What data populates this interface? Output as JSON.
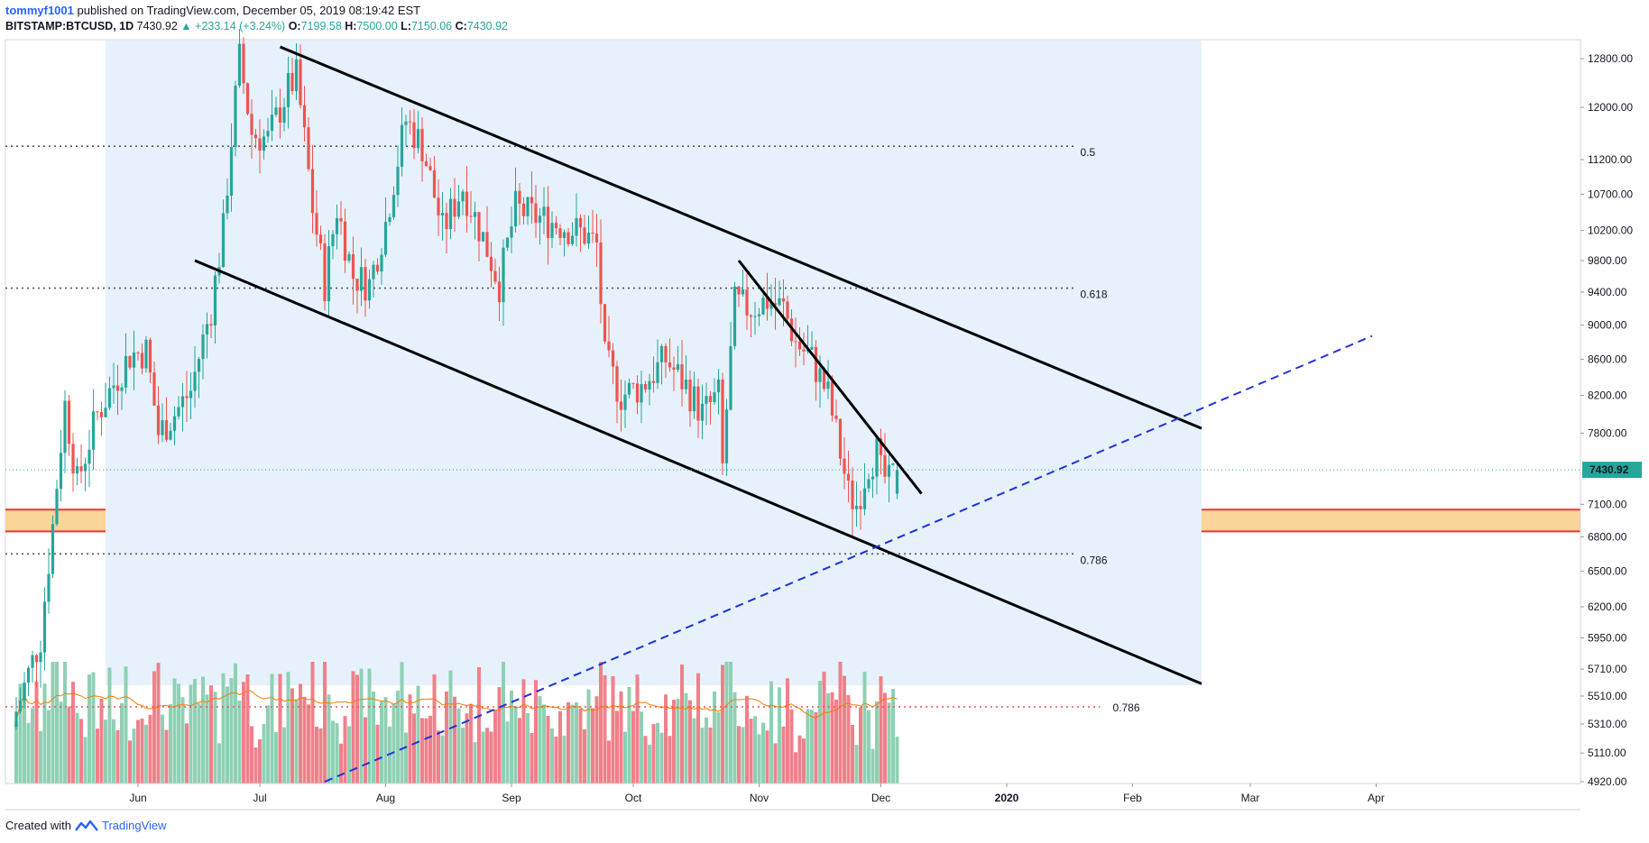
{
  "header": {
    "author": "tommyf1001",
    "published": "published on TradingView.com, December 05, 2019 08:19:42 EST",
    "symbol": "BITSTAMP:BTCUSD, 1D",
    "last": "7430.92",
    "change": "▲ +233.14 (+3.24%)",
    "open_label": "O:",
    "open": "7199.58",
    "high_label": "H:",
    "high": "7500.00",
    "low_label": "L:",
    "low": "7150.06",
    "close_label": "C:",
    "close": "7430.92"
  },
  "footer": {
    "created_with": "Created with",
    "brand": "TradingView",
    "brand_icon": "tradingview-logo-icon"
  },
  "colors": {
    "up": "#26a69a",
    "down": "#ef5350",
    "vol_up": "#8fd0b4",
    "vol_down": "#f0808a",
    "channel_fill": "#e6f1fb",
    "support_zone": "#fcd59a",
    "support_border": "#e53935",
    "trendline": "#000000",
    "dashed_trend": "#1e32d8",
    "ma": "#f57c00",
    "price_tag": "#26a69a",
    "fib_786_volume": "#ef5350"
  },
  "chart_data": {
    "type": "candlestick",
    "symbol": "BITSTAMP:BTCUSD",
    "interval": "1D",
    "y_axis": {
      "scale": "log",
      "ticks": [
        "12800.00",
        "12000.00",
        "11200.00",
        "10700.00",
        "10200.00",
        "9800.00",
        "9400.00",
        "9000.00",
        "8600.00",
        "8200.00",
        "7800.00",
        "7100.00",
        "6800.00",
        "6500.00",
        "6200.00",
        "5950.00",
        "5710.00",
        "5510.00",
        "5310.00",
        "5110.00",
        "4920.00"
      ],
      "last_price_label": "7430.92"
    },
    "x_axis": {
      "labels": [
        {
          "label": "Jun",
          "date": "2019-06-01"
        },
        {
          "label": "Jul",
          "date": "2019-07-01"
        },
        {
          "label": "Aug",
          "date": "2019-08-01"
        },
        {
          "label": "Sep",
          "date": "2019-09-01"
        },
        {
          "label": "Oct",
          "date": "2019-10-01"
        },
        {
          "label": "Nov",
          "date": "2019-11-01"
        },
        {
          "label": "Dec",
          "date": "2019-12-01"
        },
        {
          "label": "2020",
          "date": "2020-01-01"
        },
        {
          "label": "Feb",
          "date": "2020-02-01"
        },
        {
          "label": "Mar",
          "date": "2020-03-01"
        },
        {
          "label": "Apr",
          "date": "2020-04-01"
        }
      ]
    },
    "close_path": [
      {
        "date": "2019-05-02",
        "value": 5400
      },
      {
        "date": "2019-05-08",
        "value": 5950
      },
      {
        "date": "2019-05-11",
        "value": 6900
      },
      {
        "date": "2019-05-14",
        "value": 8100
      },
      {
        "date": "2019-05-17",
        "value": 7300
      },
      {
        "date": "2019-05-22",
        "value": 8000
      },
      {
        "date": "2019-05-30",
        "value": 8650
      },
      {
        "date": "2019-06-03",
        "value": 8700
      },
      {
        "date": "2019-06-06",
        "value": 7800
      },
      {
        "date": "2019-06-10",
        "value": 8000
      },
      {
        "date": "2019-06-14",
        "value": 8250
      },
      {
        "date": "2019-06-19",
        "value": 9200
      },
      {
        "date": "2019-06-22",
        "value": 10200
      },
      {
        "date": "2019-06-26",
        "value": 12800
      },
      {
        "date": "2019-06-29",
        "value": 11600
      },
      {
        "date": "2019-07-03",
        "value": 11500
      },
      {
        "date": "2019-07-08",
        "value": 12300
      },
      {
        "date": "2019-07-10",
        "value": 12500
      },
      {
        "date": "2019-07-14",
        "value": 10500
      },
      {
        "date": "2019-07-17",
        "value": 9500
      },
      {
        "date": "2019-07-20",
        "value": 10500
      },
      {
        "date": "2019-07-24",
        "value": 9600
      },
      {
        "date": "2019-07-28",
        "value": 9500
      },
      {
        "date": "2019-08-01",
        "value": 10300
      },
      {
        "date": "2019-08-06",
        "value": 11800
      },
      {
        "date": "2019-08-10",
        "value": 11400
      },
      {
        "date": "2019-08-15",
        "value": 10200
      },
      {
        "date": "2019-08-20",
        "value": 10800
      },
      {
        "date": "2019-08-25",
        "value": 10100
      },
      {
        "date": "2019-08-29",
        "value": 9500
      },
      {
        "date": "2019-09-02",
        "value": 10500
      },
      {
        "date": "2019-09-06",
        "value": 10400
      },
      {
        "date": "2019-09-12",
        "value": 10300
      },
      {
        "date": "2019-09-19",
        "value": 10150
      },
      {
        "date": "2019-09-22",
        "value": 10000
      },
      {
        "date": "2019-09-24",
        "value": 8600
      },
      {
        "date": "2019-09-28",
        "value": 8200
      },
      {
        "date": "2019-10-03",
        "value": 8300
      },
      {
        "date": "2019-10-09",
        "value": 8600
      },
      {
        "date": "2019-10-14",
        "value": 8300
      },
      {
        "date": "2019-10-18",
        "value": 8000
      },
      {
        "date": "2019-10-22",
        "value": 8200
      },
      {
        "date": "2019-10-23",
        "value": 7450
      },
      {
        "date": "2019-10-25",
        "value": 8650
      },
      {
        "date": "2019-10-26",
        "value": 9250
      },
      {
        "date": "2019-10-30",
        "value": 9200
      },
      {
        "date": "2019-11-03",
        "value": 9300
      },
      {
        "date": "2019-11-07",
        "value": 9200
      },
      {
        "date": "2019-11-10",
        "value": 8800
      },
      {
        "date": "2019-11-14",
        "value": 8600
      },
      {
        "date": "2019-11-18",
        "value": 8200
      },
      {
        "date": "2019-11-21",
        "value": 7600
      },
      {
        "date": "2019-11-23",
        "value": 7200
      },
      {
        "date": "2019-11-25",
        "value": 7100
      },
      {
        "date": "2019-11-28",
        "value": 7500
      },
      {
        "date": "2019-11-30",
        "value": 7600
      },
      {
        "date": "2019-12-01",
        "value": 7400
      },
      {
        "date": "2019-12-03",
        "value": 7300
      },
      {
        "date": "2019-12-05",
        "value": 7430.92
      }
    ],
    "fibonacci_levels": [
      {
        "label": "0.5",
        "value": 11400
      },
      {
        "label": "0.618",
        "value": 9450
      },
      {
        "label": "0.786",
        "value": 6650
      }
    ],
    "volume_fib_label": "0.786",
    "support_zone": {
      "from": 6850,
      "to": 7050
    },
    "descending_channel": {
      "upper": [
        {
          "date": "2019-07-06",
          "value": 13000
        },
        {
          "date": "2020-02-18",
          "value": 7850
        }
      ],
      "lower": [
        {
          "date": "2019-06-15",
          "value": 9800
        },
        {
          "date": "2020-02-18",
          "value": 5600
        }
      ]
    },
    "short_trendline": [
      {
        "date": "2019-10-27",
        "value": 9800
      },
      {
        "date": "2019-12-11",
        "value": 7200
      }
    ],
    "dashed_uptrend": [
      {
        "date": "2019-07-17",
        "value": 4920
      },
      {
        "date": "2020-03-31",
        "value": 8870
      }
    ]
  }
}
